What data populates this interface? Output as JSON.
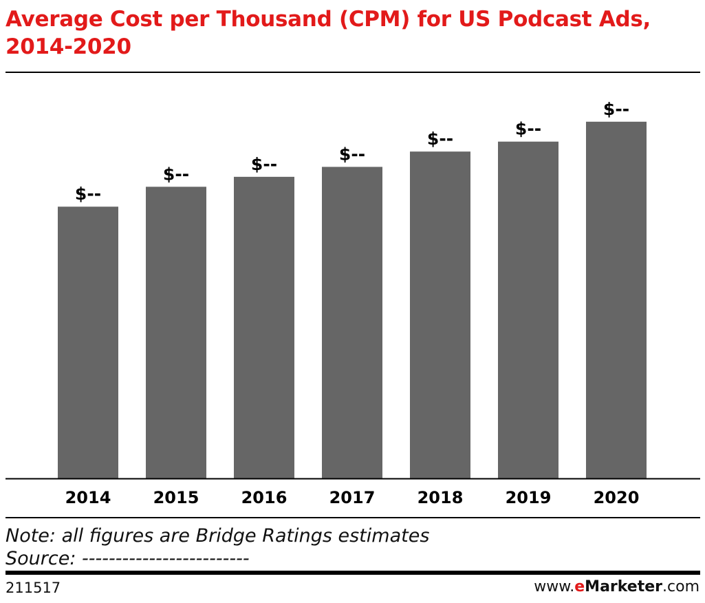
{
  "header": {
    "title": "Average Cost per Thousand (CPM) for US Podcast Ads, 2014-2020"
  },
  "chart_data": {
    "type": "bar",
    "title": "Average Cost per Thousand (CPM) for US Podcast Ads, 2014-2020",
    "xlabel": "",
    "ylabel": "",
    "categories": [
      "2014",
      "2015",
      "2016",
      "2017",
      "2018",
      "2019",
      "2020"
    ],
    "values": [
      35.5,
      38.1,
      39.4,
      40.7,
      42.7,
      44.0,
      46.6
    ],
    "value_labels": [
      "$--",
      "$--",
      "$--",
      "$--",
      "$--",
      "$--",
      "$--"
    ],
    "ylim": [
      0,
      50
    ],
    "grid": false,
    "legend": "none",
    "bar_color": "#666666",
    "axis_color": "#000000"
  },
  "footer": {
    "note": "Note: all figures are Bridge Ratings estimates",
    "source": "Source: -------------------------",
    "chart_id": "211517",
    "brand_prefix": "www.",
    "brand_e": "e",
    "brand_name": "Marketer",
    "brand_suffix": ".com"
  },
  "colors": {
    "title": "#e21a1a",
    "bars": "#666666",
    "text": "#000000"
  }
}
